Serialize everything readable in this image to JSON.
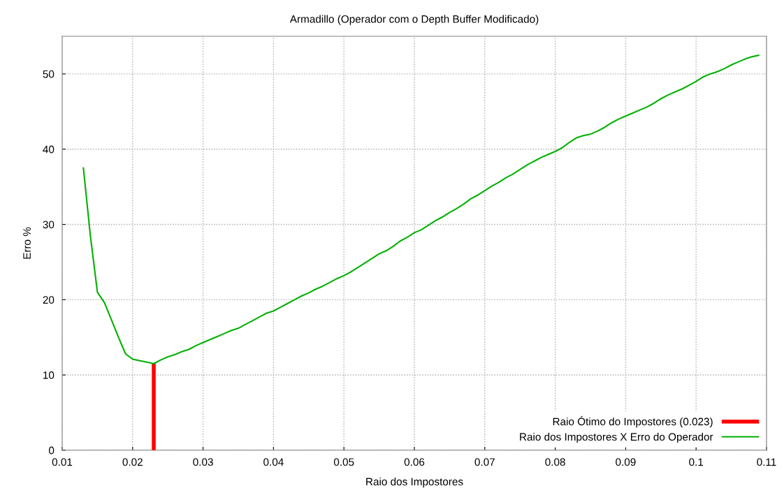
{
  "chart_data": {
    "type": "line",
    "title": "Armadillo (Operador com o Depth Buffer Modificado)",
    "xlabel": "Raio dos Impostores",
    "ylabel": "Erro %",
    "xlim": [
      0.01,
      0.11
    ],
    "xticks": [
      0.01,
      0.02,
      0.03,
      0.04,
      0.05,
      0.06,
      0.07,
      0.08,
      0.09,
      0.1,
      0.11
    ],
    "ylim": [
      0,
      55
    ],
    "yticks": [
      0,
      10,
      20,
      30,
      40,
      50
    ],
    "grid": true,
    "legend": "bottom right",
    "marker": "none",
    "line_style": "solid",
    "series": [
      {
        "name": "Raio Ótimo do Impostores (0.023)",
        "color": "#ff0000",
        "x": [
          0.023,
          0.023
        ],
        "values": [
          0,
          11.5
        ]
      },
      {
        "name": "Raio dos Impostores X Erro do Operador",
        "color": "#00b000",
        "x": [
          0.013,
          0.014,
          0.015,
          0.016,
          0.017,
          0.018,
          0.019,
          0.02,
          0.021,
          0.022,
          0.023,
          0.024,
          0.025,
          0.026,
          0.027,
          0.028,
          0.029,
          0.03,
          0.031,
          0.032,
          0.033,
          0.034,
          0.035,
          0.036,
          0.037,
          0.038,
          0.039,
          0.04,
          0.041,
          0.042,
          0.043,
          0.044,
          0.045,
          0.046,
          0.047,
          0.048,
          0.049,
          0.05,
          0.051,
          0.052,
          0.053,
          0.054,
          0.055,
          0.056,
          0.057,
          0.058,
          0.059,
          0.06,
          0.061,
          0.062,
          0.063,
          0.064,
          0.065,
          0.066,
          0.067,
          0.068,
          0.069,
          0.07,
          0.071,
          0.072,
          0.073,
          0.074,
          0.075,
          0.076,
          0.077,
          0.078,
          0.079,
          0.08,
          0.081,
          0.082,
          0.083,
          0.084,
          0.085,
          0.086,
          0.087,
          0.088,
          0.089,
          0.09,
          0.091,
          0.092,
          0.093,
          0.094,
          0.095,
          0.096,
          0.097,
          0.098,
          0.099,
          0.1,
          0.101,
          0.102,
          0.103,
          0.104,
          0.105,
          0.106,
          0.107,
          0.108,
          0.109
        ],
        "values": [
          37.6,
          28.5,
          21.0,
          19.6,
          17.3,
          15.0,
          12.8,
          12.1,
          11.9,
          11.7,
          11.5,
          12.0,
          12.4,
          12.7,
          13.1,
          13.4,
          13.9,
          14.3,
          14.7,
          15.1,
          15.5,
          15.9,
          16.2,
          16.7,
          17.2,
          17.7,
          18.2,
          18.5,
          19.0,
          19.5,
          20.0,
          20.5,
          20.9,
          21.4,
          21.8,
          22.3,
          22.8,
          23.2,
          23.7,
          24.3,
          24.9,
          25.5,
          26.1,
          26.5,
          27.1,
          27.8,
          28.3,
          28.9,
          29.3,
          29.9,
          30.5,
          31.0,
          31.6,
          32.1,
          32.7,
          33.4,
          33.9,
          34.5,
          35.1,
          35.6,
          36.2,
          36.7,
          37.3,
          37.9,
          38.4,
          38.9,
          39.3,
          39.7,
          40.2,
          40.9,
          41.5,
          41.8,
          42.0,
          42.4,
          42.9,
          43.5,
          44.0,
          44.4,
          44.8,
          45.2,
          45.6,
          46.1,
          46.7,
          47.2,
          47.6,
          48.0,
          48.5,
          49.0,
          49.6,
          50.0,
          50.3,
          50.7,
          51.2,
          51.6,
          52.0,
          52.3,
          52.5
        ]
      }
    ]
  }
}
